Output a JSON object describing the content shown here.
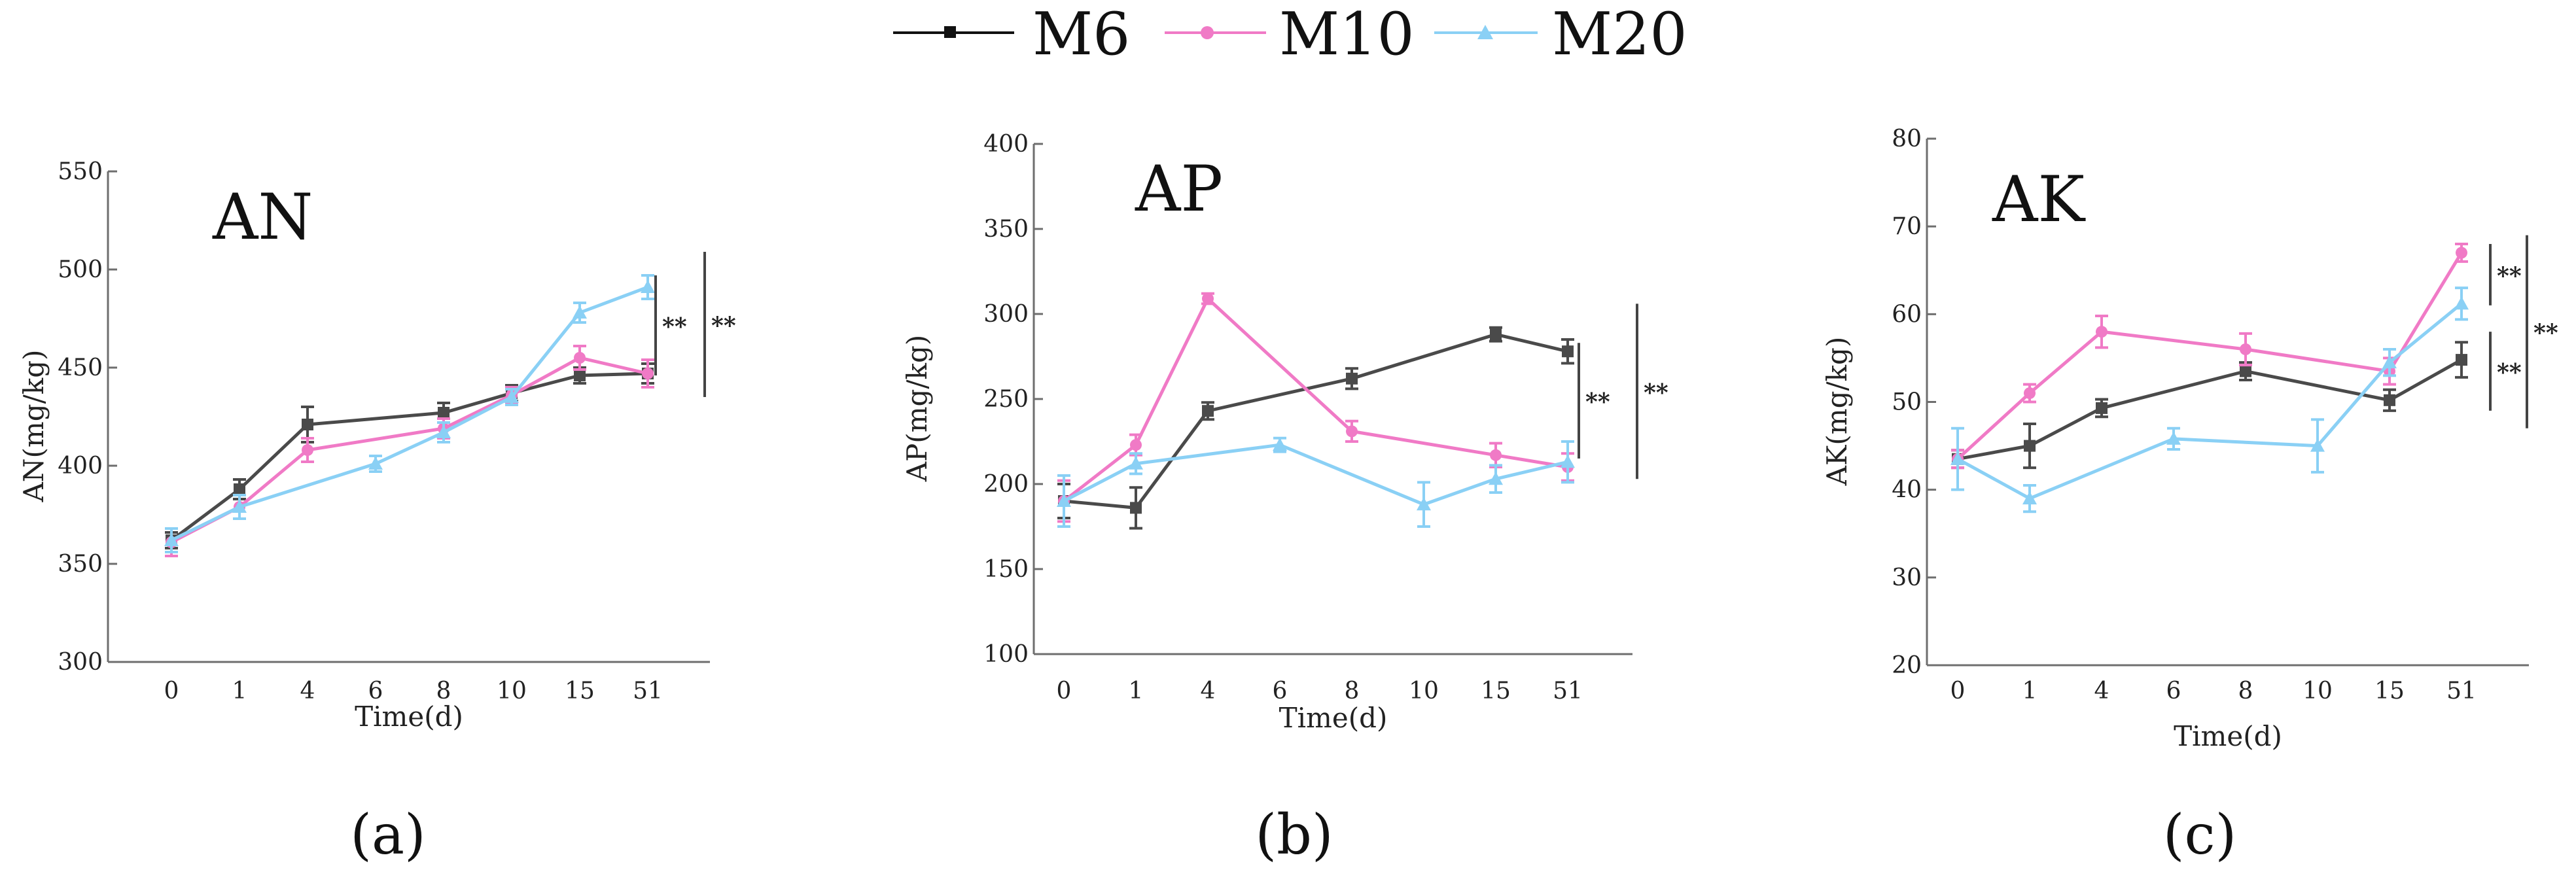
{
  "legend": [
    {
      "name": "M6",
      "color": "#4a4a4a",
      "marker": "square"
    },
    {
      "name": "M10",
      "color": "#f07ac6",
      "marker": "circle"
    },
    {
      "name": "M20",
      "color": "#8ad0f5",
      "marker": "triangle"
    }
  ],
  "chart_data": [
    {
      "type": "line",
      "title": "AN",
      "caption": "(a)",
      "xlabel": "Time(d)",
      "ylabel": "AN(mg/kg)",
      "categories": [
        "0",
        "1",
        "4",
        "6",
        "8",
        "10",
        "15",
        "51"
      ],
      "ylim": [
        300,
        550
      ],
      "yticks": [
        300,
        350,
        400,
        450,
        500,
        550
      ],
      "series": [
        {
          "name": "M6",
          "values": [
            362,
            388,
            421,
            null,
            427,
            437,
            446,
            447
          ],
          "errors": [
            4,
            5,
            9,
            null,
            5,
            4,
            4,
            5
          ]
        },
        {
          "name": "M10",
          "values": [
            361,
            379,
            408,
            null,
            419,
            436,
            455,
            447
          ],
          "errors": [
            7,
            6,
            6,
            null,
            5,
            4,
            6,
            7
          ]
        },
        {
          "name": "M20",
          "values": [
            362,
            379,
            null,
            401,
            417,
            435,
            478,
            491
          ],
          "errors": [
            6,
            6,
            null,
            4,
            5,
            4,
            5,
            6
          ]
        }
      ],
      "significance": [
        {
          "label": "**",
          "from": 446,
          "to": 497
        },
        {
          "label": "**",
          "from": 435,
          "to": 509
        }
      ]
    },
    {
      "type": "line",
      "title": "AP",
      "caption": "(b)",
      "xlabel": "Time(d)",
      "ylabel": "AP(mg/kg)",
      "categories": [
        "0",
        "1",
        "4",
        "6",
        "8",
        "10",
        "15",
        "51"
      ],
      "ylim": [
        100,
        400
      ],
      "yticks": [
        100,
        150,
        200,
        250,
        300,
        350,
        400
      ],
      "series": [
        {
          "name": "M6",
          "values": [
            190,
            186,
            243,
            null,
            262,
            null,
            288,
            278
          ],
          "errors": [
            10,
            12,
            5,
            null,
            6,
            null,
            4,
            7
          ]
        },
        {
          "name": "M10",
          "values": [
            190,
            223,
            309,
            null,
            231,
            null,
            217,
            210
          ],
          "errors": [
            12,
            6,
            3,
            null,
            6,
            null,
            7,
            8
          ]
        },
        {
          "name": "M20",
          "values": [
            190,
            212,
            null,
            223,
            null,
            188,
            203,
            213
          ],
          "errors": [
            15,
            6,
            null,
            4,
            null,
            13,
            8,
            12
          ]
        }
      ],
      "significance": [
        {
          "label": "**",
          "from": 215,
          "to": 283
        },
        {
          "label": "**",
          "from": 203,
          "to": 306
        }
      ]
    },
    {
      "type": "line",
      "title": "AK",
      "caption": "(c)",
      "xlabel": "Time(d)",
      "ylabel": "AK(mg/kg)",
      "categories": [
        "0",
        "1",
        "4",
        "6",
        "8",
        "10",
        "15",
        "51"
      ],
      "ylim": [
        20,
        80
      ],
      "yticks": [
        20,
        30,
        40,
        50,
        60,
        70,
        80
      ],
      "series": [
        {
          "name": "M6",
          "values": [
            43.5,
            45,
            49.3,
            null,
            53.5,
            null,
            50.2,
            54.8
          ],
          "errors": [
            1,
            2.5,
            1,
            null,
            1,
            null,
            1.2,
            2
          ]
        },
        {
          "name": "M10",
          "values": [
            43.5,
            51,
            58,
            null,
            56,
            null,
            53.5,
            67
          ],
          "errors": [
            1,
            1,
            1.8,
            null,
            1.8,
            null,
            1.5,
            1
          ]
        },
        {
          "name": "M20",
          "values": [
            43.5,
            39,
            null,
            45.8,
            null,
            45,
            54.5,
            61.2
          ],
          "errors": [
            3.5,
            1.5,
            null,
            1.2,
            null,
            3,
            1.5,
            1.8
          ]
        }
      ],
      "significance": [
        {
          "label": "**",
          "from": 61,
          "to": 68
        },
        {
          "label": "**",
          "from": 49,
          "to": 58
        },
        {
          "label": "**",
          "from": 47,
          "to": 69
        }
      ]
    }
  ]
}
